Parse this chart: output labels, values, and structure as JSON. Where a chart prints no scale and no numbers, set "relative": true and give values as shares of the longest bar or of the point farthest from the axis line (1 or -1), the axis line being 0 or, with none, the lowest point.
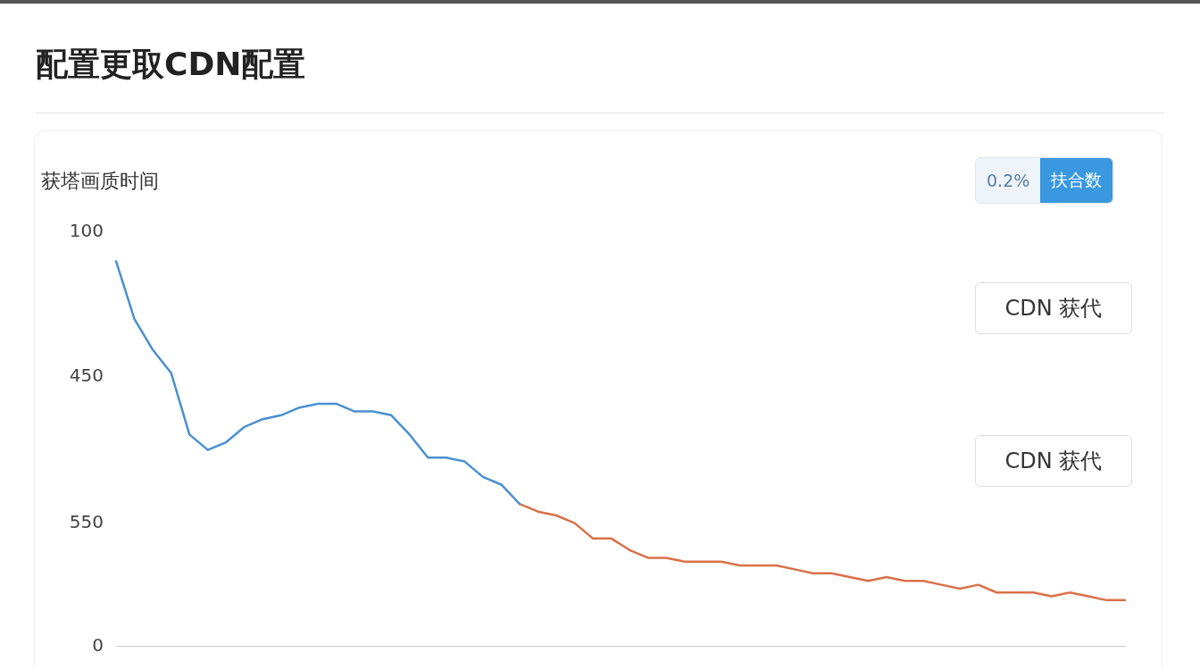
{
  "chart_data": {
    "type": "line",
    "title": "配置更取CDN配置",
    "subtitle": "获塔画质时间",
    "categories": [
      null,
      null,
      null,
      null,
      null,
      null,
      null,
      null,
      null,
      null,
      null,
      null,
      null,
      null,
      null,
      null,
      null,
      null,
      null,
      null,
      null,
      null,
      null,
      null,
      null,
      null,
      null,
      null,
      null,
      null,
      null,
      null,
      null,
      null,
      null,
      null,
      null,
      null,
      null,
      null,
      null,
      null,
      null,
      null,
      null,
      null,
      null,
      null,
      null,
      null,
      null,
      null,
      null,
      null,
      null,
      null
    ],
    "series": [
      {
        "color": "#4a90d0",
        "values": [
          1.0,
          0.85,
          0.77,
          0.71,
          0.55,
          0.51,
          0.53,
          0.57,
          0.59,
          0.6,
          0.62,
          0.63,
          0.63,
          0.61,
          0.61,
          0.6,
          0.55,
          0.49,
          0.49,
          0.48,
          0.44,
          0.42,
          0.37,
          null,
          null,
          null,
          null,
          null,
          null,
          null,
          null,
          null,
          null,
          null,
          null,
          null,
          null,
          null,
          null,
          null,
          null,
          null,
          null,
          null,
          null,
          null,
          null,
          null,
          null,
          null,
          null,
          null,
          null,
          null,
          null,
          null
        ]
      },
      {
        "color": "#d9714a",
        "values": [
          null,
          null,
          null,
          null,
          null,
          null,
          null,
          null,
          null,
          null,
          null,
          null,
          null,
          null,
          null,
          null,
          null,
          null,
          null,
          null,
          null,
          null,
          0.37,
          0.35,
          0.34,
          0.32,
          0.28,
          0.28,
          0.25,
          0.23,
          0.23,
          0.22,
          0.22,
          0.22,
          0.21,
          0.21,
          0.21,
          0.2,
          0.19,
          0.19,
          0.18,
          0.17,
          0.18,
          0.17,
          0.17,
          0.16,
          0.15,
          0.16,
          0.14,
          0.14,
          0.14,
          0.13,
          0.14,
          0.13,
          0.12,
          0.12
        ]
      }
    ],
    "relative": true,
    "legend": false,
    "marker": "none",
    "line_style": "solid",
    "annotations": [
      "0.2%",
      "扶合数",
      "CDN 获代",
      "CDN 获代",
      "100",
      "450",
      "550",
      "0"
    ]
  }
}
